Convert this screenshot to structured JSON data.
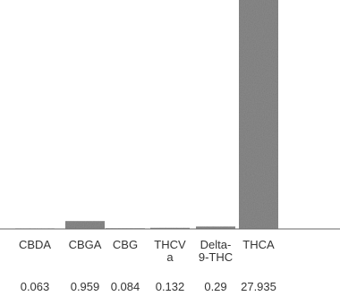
{
  "chart_data": {
    "type": "bar",
    "categories": [
      "CBDA",
      "CBGA",
      "CBG",
      "THCV a",
      "Delta- 9-THC",
      "THCA"
    ],
    "category_lines": [
      [
        "CBDA"
      ],
      [
        "CBGA"
      ],
      [
        "CBG"
      ],
      [
        "THCV",
        "a"
      ],
      [
        "Delta-",
        "9-THC"
      ],
      [
        "THCA"
      ]
    ],
    "values": [
      0.063,
      0.959,
      0.084,
      0.132,
      0.29,
      27.935
    ],
    "value_labels": [
      "0.063",
      "0.959",
      "0.084",
      "0.132",
      "0.29",
      "27.935"
    ],
    "title": "",
    "xlabel": "",
    "ylabel": "",
    "ylim": [
      0,
      27.935
    ],
    "grid": false,
    "bar_color": "#8a8a8a",
    "axis_color": "#666666",
    "text_color": "#333333"
  }
}
